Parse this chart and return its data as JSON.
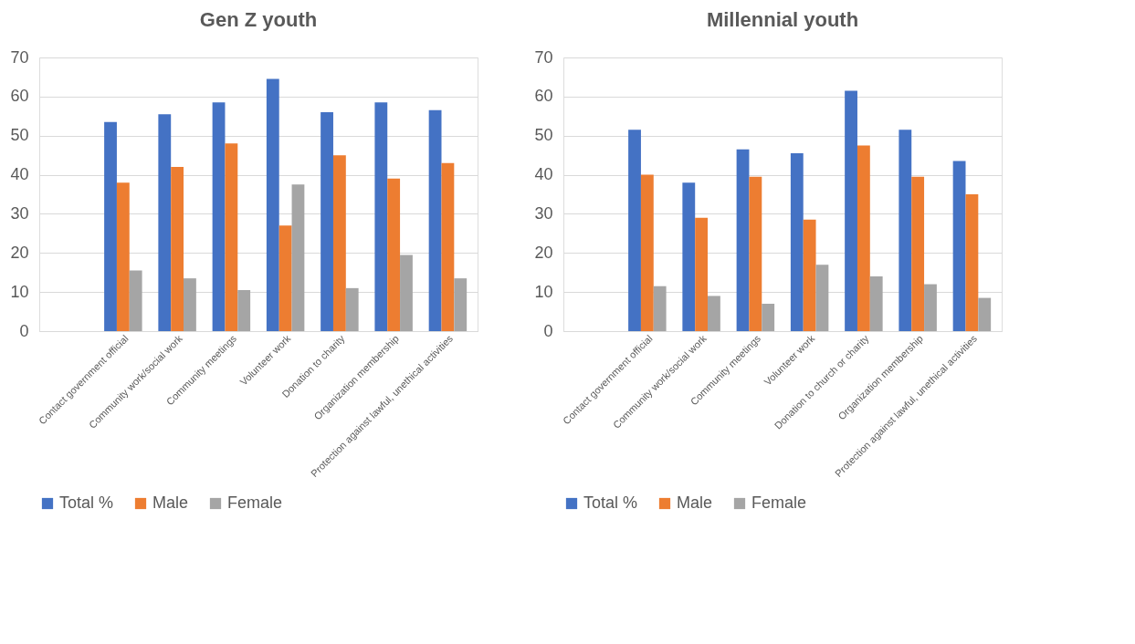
{
  "chart_data": [
    {
      "type": "bar",
      "title": "Gen Z youth",
      "categories": [
        null,
        "Contact government official",
        "Community work/social work",
        "Community meetings",
        "Volunteer work",
        "Donation to charity",
        "Organization membership",
        "Protection against lawful, unethical activities"
      ],
      "series": [
        {
          "name": "Total %",
          "color": "#4472c4",
          "values": [
            null,
            53.5,
            55.5,
            58.5,
            64.5,
            56,
            58.5,
            56.5
          ]
        },
        {
          "name": "Male",
          "color": "#ed7d31",
          "values": [
            null,
            38,
            42,
            48,
            27,
            45,
            39,
            43
          ]
        },
        {
          "name": "Female",
          "color": "#a5a5a5",
          "values": [
            null,
            15.5,
            13.5,
            10.5,
            37.5,
            11,
            19.5,
            13.5
          ]
        }
      ],
      "ylim": [
        0,
        70
      ],
      "yticks": [
        0,
        10,
        20,
        30,
        40,
        50,
        60,
        70
      ],
      "grid": "y",
      "legend": "bottom"
    },
    {
      "type": "bar",
      "title": "Millennial youth",
      "categories": [
        null,
        "Contact government official",
        "Community work/social work",
        "Community meetings",
        "Volunteer work",
        "Donation to church or charity",
        "Organization membership",
        "Protection against lawful, unethical activities"
      ],
      "series": [
        {
          "name": "Total %",
          "color": "#4472c4",
          "values": [
            null,
            51.5,
            38,
            46.5,
            45.5,
            61.5,
            51.5,
            43.5
          ]
        },
        {
          "name": "Male",
          "color": "#ed7d31",
          "values": [
            null,
            40,
            29,
            39.5,
            28.5,
            47.5,
            39.5,
            35
          ]
        },
        {
          "name": "Female",
          "color": "#a5a5a5",
          "values": [
            null,
            11.5,
            9,
            7,
            17,
            14,
            12,
            8.5
          ]
        }
      ],
      "ylim": [
        0,
        70
      ],
      "yticks": [
        0,
        10,
        20,
        30,
        40,
        50,
        60,
        70
      ],
      "grid": "y",
      "legend": "bottom"
    }
  ]
}
